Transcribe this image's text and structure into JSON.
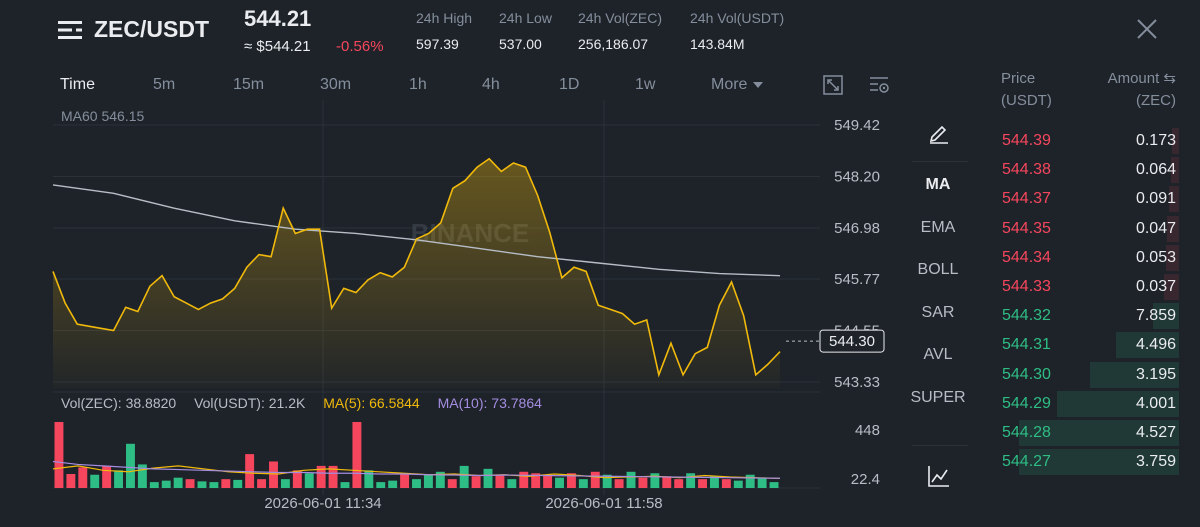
{
  "header": {
    "pair": "ZEC/USDT",
    "last_price": "544.21",
    "approx_price": "≈ $544.21",
    "change_pct": "-0.56%",
    "stats": [
      {
        "label": "24h High",
        "value": "597.39"
      },
      {
        "label": "24h Low",
        "value": "537.00"
      },
      {
        "label": "24h Vol(ZEC)",
        "value": "256,186.07"
      },
      {
        "label": "24h Vol(USDT)",
        "value": "143.84M"
      }
    ]
  },
  "tabs": [
    {
      "label": "Time",
      "active": true
    },
    {
      "label": "5m"
    },
    {
      "label": "15m"
    },
    {
      "label": "30m"
    },
    {
      "label": "1h"
    },
    {
      "label": "4h"
    },
    {
      "label": "1D"
    },
    {
      "label": "1w"
    },
    {
      "label": "More"
    }
  ],
  "icons": {
    "menu": "menu-icon",
    "close": "close-icon",
    "fullscreen": "expand-icon",
    "settings": "chart-settings-icon",
    "draw": "pencil-icon",
    "depth": "line-chart-icon"
  },
  "colors": {
    "up": "#2ebd85",
    "down": "#f6465d",
    "price_line": "#f0b90b",
    "ma60": "#b7bdc6",
    "ma5": "#f0b90b",
    "ma10": "#a48ce0"
  },
  "chart": {
    "ma60_label": "MA60 546.15",
    "watermark": "BINANCE",
    "y_ticks": [
      "549.42",
      "548.20",
      "546.98",
      "545.77",
      "544.55",
      "543.33"
    ],
    "y_tick_values": [
      549.42,
      548.2,
      546.98,
      545.77,
      544.55,
      543.33
    ],
    "current_price": "544.30",
    "current_price_value": 544.3,
    "price_series": [
      545.95,
      545.2,
      544.7,
      544.65,
      544.6,
      544.55,
      545.1,
      545.0,
      545.6,
      545.85,
      545.35,
      545.2,
      545.05,
      545.2,
      545.3,
      545.55,
      546.05,
      546.35,
      546.3,
      547.45,
      546.85,
      546.95,
      546.95,
      545.08,
      545.55,
      545.45,
      545.75,
      545.92,
      545.82,
      546.05,
      546.72,
      546.85,
      547.1,
      547.92,
      548.1,
      548.42,
      548.62,
      548.32,
      548.52,
      548.42,
      547.75,
      546.87,
      545.8,
      546.05,
      545.95,
      545.15,
      545.05,
      544.95,
      544.7,
      544.8,
      543.5,
      544.25,
      543.5,
      544.0,
      544.15,
      545.15,
      545.7,
      544.9,
      543.5,
      543.75,
      544.05
    ],
    "ma60_series": [
      548.0,
      547.8,
      547.45,
      547.15,
      546.95,
      546.85,
      546.7,
      546.5,
      546.3,
      546.15,
      546.0,
      545.9,
      545.85
    ],
    "vol_legend": {
      "vol_zec": "Vol(ZEC): 38.8820",
      "vol_usdt": "Vol(USDT): 21.2K",
      "ma5": "MA(5): 66.5844",
      "ma10": "MA(10): 73.7864"
    },
    "vol_ticks": [
      "448",
      "22.4"
    ],
    "vol_max_value": 448,
    "volumes": [
      {
        "v": 448,
        "up": false
      },
      {
        "v": 95,
        "up": false
      },
      {
        "v": 140,
        "up": false
      },
      {
        "v": 90,
        "up": true
      },
      {
        "v": 150,
        "up": false
      },
      {
        "v": 120,
        "up": true
      },
      {
        "v": 300,
        "up": true
      },
      {
        "v": 160,
        "up": true
      },
      {
        "v": 40,
        "up": true
      },
      {
        "v": 50,
        "up": true
      },
      {
        "v": 70,
        "up": true
      },
      {
        "v": 60,
        "up": false
      },
      {
        "v": 45,
        "up": true
      },
      {
        "v": 40,
        "up": true
      },
      {
        "v": 60,
        "up": false
      },
      {
        "v": 55,
        "up": true
      },
      {
        "v": 230,
        "up": false
      },
      {
        "v": 60,
        "up": false
      },
      {
        "v": 180,
        "up": false
      },
      {
        "v": 60,
        "up": true
      },
      {
        "v": 120,
        "up": false
      },
      {
        "v": 100,
        "up": true
      },
      {
        "v": 150,
        "up": false
      },
      {
        "v": 150,
        "up": false
      },
      {
        "v": 40,
        "up": true
      },
      {
        "v": 448,
        "up": false
      },
      {
        "v": 120,
        "up": true
      },
      {
        "v": 40,
        "up": true
      },
      {
        "v": 50,
        "up": true
      },
      {
        "v": 100,
        "up": false
      },
      {
        "v": 60,
        "up": true
      },
      {
        "v": 90,
        "up": true
      },
      {
        "v": 110,
        "up": true
      },
      {
        "v": 60,
        "up": false
      },
      {
        "v": 150,
        "up": true
      },
      {
        "v": 80,
        "up": false
      },
      {
        "v": 130,
        "up": true
      },
      {
        "v": 90,
        "up": false
      },
      {
        "v": 60,
        "up": true
      },
      {
        "v": 110,
        "up": false
      },
      {
        "v": 100,
        "up": false
      },
      {
        "v": 90,
        "up": false
      },
      {
        "v": 70,
        "up": true
      },
      {
        "v": 100,
        "up": false
      },
      {
        "v": 60,
        "up": true
      },
      {
        "v": 110,
        "up": false
      },
      {
        "v": 90,
        "up": true
      },
      {
        "v": 60,
        "up": false
      },
      {
        "v": 110,
        "up": true
      },
      {
        "v": 70,
        "up": false
      },
      {
        "v": 100,
        "up": true
      },
      {
        "v": 80,
        "up": false
      },
      {
        "v": 60,
        "up": false
      },
      {
        "v": 100,
        "up": true
      },
      {
        "v": 60,
        "up": false
      },
      {
        "v": 80,
        "up": true
      },
      {
        "v": 60,
        "up": false
      },
      {
        "v": 50,
        "up": true
      },
      {
        "v": 90,
        "up": true
      },
      {
        "v": 70,
        "up": true
      },
      {
        "v": 40,
        "up": true
      }
    ],
    "ma5_vol_series": [
      130,
      150,
      120,
      110,
      135,
      150,
      130,
      110,
      100,
      95,
      120,
      130,
      120,
      110,
      100,
      90,
      95,
      85,
      90,
      80,
      95,
      85,
      70,
      75,
      80,
      70,
      85,
      75,
      70,
      65
    ],
    "ma10_vol_series": [
      180,
      160,
      150,
      140,
      130,
      125,
      120,
      115,
      110,
      105,
      105,
      100,
      100,
      95,
      95,
      90,
      88,
      85,
      88,
      86,
      84,
      82,
      80,
      78,
      76,
      74,
      72,
      70,
      68,
      66
    ],
    "x_labels": [
      "2026-06-01 11:34",
      "2026-06-01 11:58"
    ]
  },
  "indicators": [
    {
      "label": "MA",
      "active": true
    },
    {
      "label": "EMA"
    },
    {
      "label": "BOLL"
    },
    {
      "label": "SAR"
    },
    {
      "label": "AVL"
    },
    {
      "label": "SUPER"
    }
  ],
  "orderbook": {
    "price_header": "Price",
    "price_unit": "(USDT)",
    "amount_header": "Amount ⇆",
    "amount_unit": "(ZEC)",
    "asks": [
      {
        "price": "544.39",
        "amount": "0.173",
        "depth": 0.04
      },
      {
        "price": "544.38",
        "amount": "0.064",
        "depth": 0.05
      },
      {
        "price": "544.37",
        "amount": "0.091",
        "depth": 0.06
      },
      {
        "price": "544.35",
        "amount": "0.047",
        "depth": 0.07
      },
      {
        "price": "544.34",
        "amount": "0.053",
        "depth": 0.08
      },
      {
        "price": "544.33",
        "amount": "0.037",
        "depth": 0.09
      }
    ],
    "bids": [
      {
        "price": "544.32",
        "amount": "7.859",
        "depth": 0.16
      },
      {
        "price": "544.31",
        "amount": "4.496",
        "depth": 0.38
      },
      {
        "price": "544.30",
        "amount": "3.195",
        "depth": 0.54
      },
      {
        "price": "544.29",
        "amount": "4.001",
        "depth": 0.74
      },
      {
        "price": "544.28",
        "amount": "4.527",
        "depth": 0.97
      },
      {
        "price": "544.27",
        "amount": "3.759",
        "depth": 0.97
      }
    ]
  }
}
